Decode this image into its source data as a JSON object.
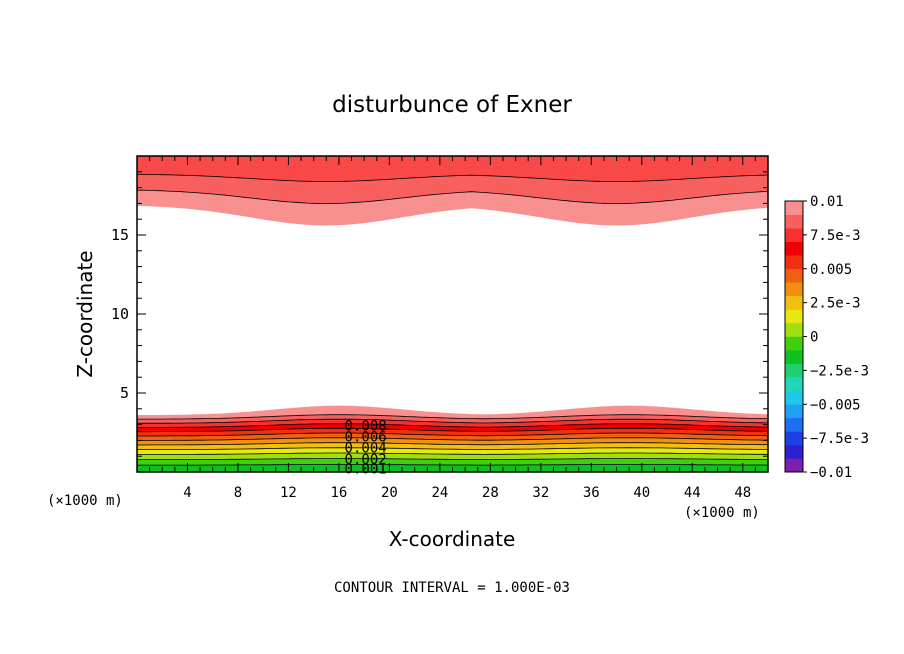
{
  "chart_data": {
    "type": "contour",
    "title": "disturbunce of Exner",
    "xlabel": "X-coordinate",
    "ylabel": "Z-coordinate",
    "x_unit": "(×1000 m)",
    "x_unit_right": "(×1000 m)",
    "xlim": [
      0,
      50
    ],
    "ylim": [
      0,
      20
    ],
    "x_ticks": [
      4,
      8,
      12,
      16,
      20,
      24,
      28,
      32,
      36,
      40,
      44,
      48
    ],
    "y_ticks": [
      5,
      10,
      15
    ],
    "contour_interval_text": "CONTOUR INTERVAL = 1.000E-03",
    "contour_labels": [
      "0.008",
      "0.006",
      "0.004",
      "0.002",
      "0.001"
    ],
    "colorbar": {
      "min": -0.01,
      "max": 0.01,
      "tick_labels": [
        "0.01",
        "7.5e-3",
        "0.005",
        "2.5e-3",
        "0",
        "−2.5e-3",
        "−0.005",
        "−7.5e-3",
        "−0.01"
      ],
      "colors": [
        "#7a1fb0",
        "#2f1fcf",
        "#1f3fe6",
        "#1f6ff2",
        "#20a0f5",
        "#20c8e8",
        "#20d8b8",
        "#20d070",
        "#10c020",
        "#40d010",
        "#a0e010",
        "#e8e810",
        "#f0c010",
        "#f09010",
        "#f06010",
        "#f03010",
        "#f00000",
        "#f83030",
        "#f86060",
        "#f89090"
      ]
    },
    "bottom_layer": {
      "z_top_min": 3.6,
      "z_top_max": 4.2,
      "crests_x": [
        16,
        39
      ],
      "bands": [
        "#10c020",
        "#40d010",
        "#a0e010",
        "#e8e810",
        "#f0c010",
        "#f09010",
        "#f06010",
        "#f03010",
        "#f00000",
        "#f83030",
        "#f86060",
        "#f89090"
      ]
    },
    "top_layer": {
      "z_bottom_min": 15.6,
      "z_bottom_max": 16.9,
      "troughs_x": [
        15,
        38
      ],
      "bands": [
        "#f89090",
        "#f86060",
        "#f84848"
      ]
    }
  }
}
